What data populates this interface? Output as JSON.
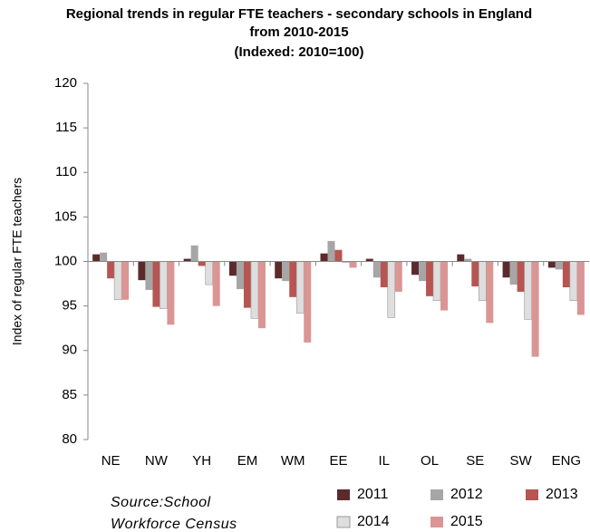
{
  "chart_data": {
    "type": "bar",
    "title": "Regional trends in regular FTE teachers - secondary schools in England from 2010-2015",
    "subtitle": "(Indexed: 2010=100)",
    "y_label": "Index of regular FTE teachers",
    "source": "Source:School Workforce Census",
    "categories": [
      "NE",
      "NW",
      "YH",
      "EM",
      "WM",
      "EE",
      "IL",
      "OL",
      "SE",
      "SW",
      "ENG"
    ],
    "baseline": 100,
    "series": [
      {
        "name": "2011",
        "color": "#5b2b2b",
        "values": [
          100.8,
          97.9,
          100.3,
          98.4,
          98.1,
          100.9,
          100.3,
          98.5,
          100.8,
          98.2,
          99.3
        ]
      },
      {
        "name": "2012",
        "color": "#a6a6a6",
        "values": [
          101.0,
          96.8,
          101.8,
          96.9,
          97.8,
          102.3,
          98.2,
          97.8,
          100.3,
          97.4,
          99.1
        ]
      },
      {
        "name": "2013",
        "color": "#b65552",
        "values": [
          98.1,
          94.9,
          99.5,
          94.8,
          96.0,
          101.3,
          97.1,
          96.1,
          97.2,
          96.6,
          97.1
        ]
      },
      {
        "name": "2014",
        "color": "#dedede",
        "values": [
          95.7,
          94.7,
          97.4,
          93.6,
          94.2,
          99.9,
          93.7,
          95.6,
          95.6,
          93.5,
          95.6
        ]
      },
      {
        "name": "2015",
        "color": "#d99694",
        "values": [
          95.7,
          92.9,
          95.0,
          92.5,
          90.9,
          99.3,
          96.6,
          94.5,
          93.1,
          89.3,
          94.0
        ]
      }
    ],
    "ylim": [
      80,
      120
    ],
    "yticks": [
      80,
      85,
      90,
      95,
      100,
      105,
      110,
      115,
      120
    ],
    "grid": false
  }
}
